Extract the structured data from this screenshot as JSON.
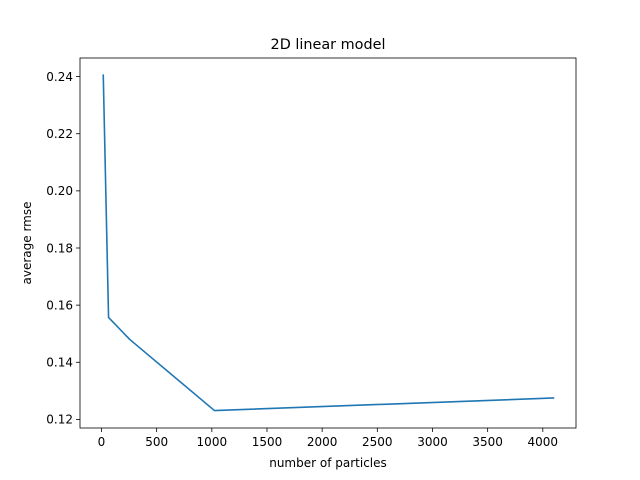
{
  "chart_data": {
    "type": "line",
    "title": "2D linear model",
    "xlabel": "number of particles",
    "ylabel": "average rmse",
    "xlim": [
      -194.8,
      4300.8
    ],
    "ylim": [
      0.117,
      0.2465
    ],
    "xticks": [
      0,
      500,
      1000,
      1500,
      2000,
      2500,
      3000,
      3500,
      4000
    ],
    "yticks": [
      0.12,
      0.14,
      0.16,
      0.18,
      0.2,
      0.22,
      0.24
    ],
    "ytick_labels": [
      "0.12",
      "0.14",
      "0.16",
      "0.18",
      "0.20",
      "0.22",
      "0.24"
    ],
    "grid": false,
    "series": [
      {
        "color": "#1f77b4",
        "x": [
          16,
          64,
          256,
          1024,
          4096
        ],
        "y": [
          0.2405,
          0.1557,
          0.148,
          0.1231,
          0.1275
        ]
      }
    ]
  }
}
